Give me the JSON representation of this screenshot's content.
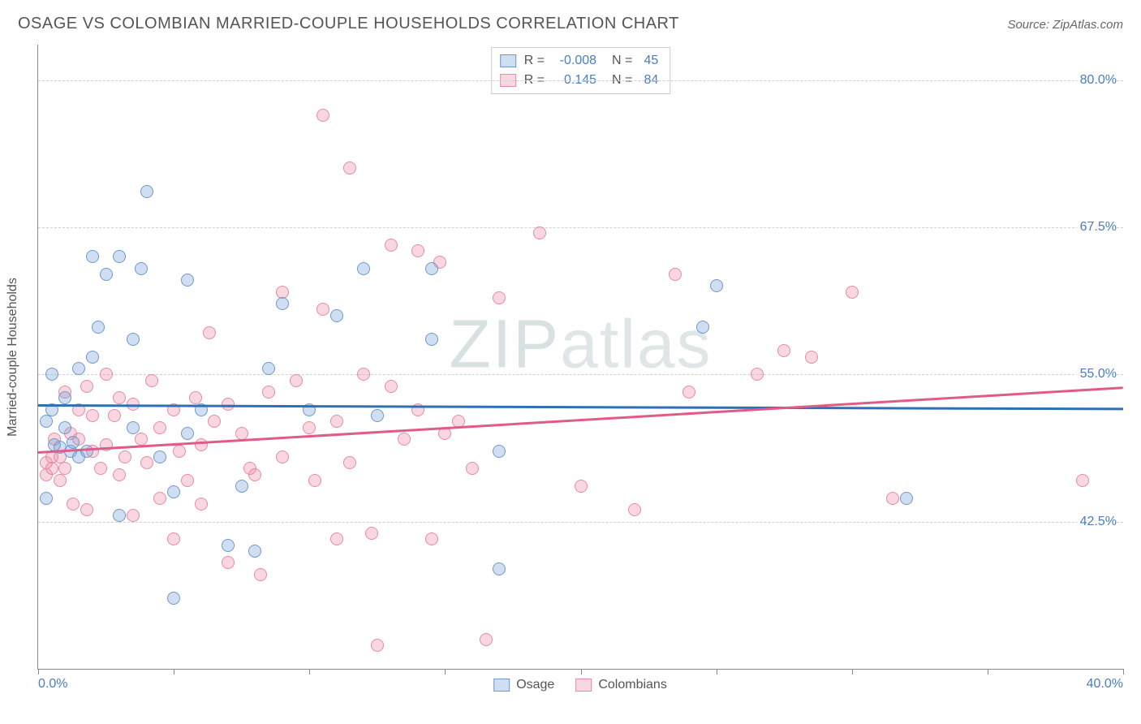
{
  "title": "OSAGE VS COLOMBIAN MARRIED-COUPLE HOUSEHOLDS CORRELATION CHART",
  "source_label": "Source: ZipAtlas.com",
  "watermark": {
    "bold": "ZIP",
    "thin": "atlas"
  },
  "ylabel": "Married-couple Households",
  "chart": {
    "type": "scatter",
    "xlim": [
      0,
      40
    ],
    "ylim": [
      30,
      83
    ],
    "x_axis_labels": [
      {
        "value": 0,
        "label": "0.0%"
      },
      {
        "value": 40,
        "label": "40.0%"
      }
    ],
    "x_ticks": [
      0,
      5,
      10,
      15,
      20,
      25,
      30,
      35,
      40
    ],
    "y_gridlines": [
      {
        "value": 42.5,
        "label": "42.5%"
      },
      {
        "value": 55.0,
        "label": "55.0%"
      },
      {
        "value": 67.5,
        "label": "67.5%"
      },
      {
        "value": 80.0,
        "label": "80.0%"
      }
    ],
    "background_color": "#ffffff",
    "grid_color": "#d0d0d0",
    "axis_color": "#888888",
    "label_color": "#4a7ebb",
    "marker_radius": 8,
    "marker_border_width": 1.5,
    "series": [
      {
        "name": "Osage",
        "fill": "rgba(120,160,216,0.35)",
        "stroke": "#6e98d1",
        "trend": {
          "color": "#2f6fb3",
          "y_start": 52.5,
          "y_end": 52.2
        },
        "stats": {
          "R": "-0.008",
          "N": "45"
        },
        "points": [
          [
            0.3,
            44.5
          ],
          [
            0.3,
            51.0
          ],
          [
            0.5,
            52.0
          ],
          [
            0.5,
            55.0
          ],
          [
            0.6,
            49.0
          ],
          [
            0.8,
            48.8
          ],
          [
            1.0,
            53.0
          ],
          [
            1.0,
            50.5
          ],
          [
            1.2,
            48.5
          ],
          [
            1.3,
            49.2
          ],
          [
            1.5,
            55.5
          ],
          [
            1.5,
            48.0
          ],
          [
            1.8,
            48.5
          ],
          [
            2.0,
            56.5
          ],
          [
            2.0,
            65.0
          ],
          [
            2.2,
            59.0
          ],
          [
            2.5,
            63.5
          ],
          [
            3.0,
            65.0
          ],
          [
            3.0,
            43.0
          ],
          [
            3.5,
            58.0
          ],
          [
            3.5,
            50.5
          ],
          [
            3.8,
            64.0
          ],
          [
            4.0,
            70.5
          ],
          [
            4.5,
            48.0
          ],
          [
            5.0,
            36.0
          ],
          [
            5.0,
            45.0
          ],
          [
            5.5,
            63.0
          ],
          [
            5.5,
            50.0
          ],
          [
            6.0,
            52.0
          ],
          [
            7.0,
            40.5
          ],
          [
            7.5,
            45.5
          ],
          [
            8.0,
            40.0
          ],
          [
            8.5,
            55.5
          ],
          [
            9.0,
            61.0
          ],
          [
            10.0,
            52.0
          ],
          [
            11.0,
            60.0
          ],
          [
            12.0,
            64.0
          ],
          [
            12.5,
            51.5
          ],
          [
            14.5,
            64.0
          ],
          [
            14.5,
            58.0
          ],
          [
            17.0,
            48.5
          ],
          [
            17.0,
            38.5
          ],
          [
            24.5,
            59.0
          ],
          [
            25.0,
            62.5
          ],
          [
            32.0,
            44.5
          ]
        ]
      },
      {
        "name": "Colombians",
        "fill": "rgba(238,140,165,0.35)",
        "stroke": "#e88aa3",
        "trend": {
          "color": "#e05b88",
          "y_start": 48.5,
          "y_end": 54.0
        },
        "stats": {
          "R": "0.145",
          "N": "84"
        },
        "points": [
          [
            0.3,
            47.5
          ],
          [
            0.3,
            46.5
          ],
          [
            0.5,
            48.0
          ],
          [
            0.5,
            47.0
          ],
          [
            0.6,
            49.5
          ],
          [
            0.8,
            48.0
          ],
          [
            0.8,
            46.0
          ],
          [
            1.0,
            47.0
          ],
          [
            1.0,
            53.5
          ],
          [
            1.2,
            50.0
          ],
          [
            1.3,
            44.0
          ],
          [
            1.5,
            49.5
          ],
          [
            1.5,
            52.0
          ],
          [
            1.8,
            54.0
          ],
          [
            1.8,
            43.5
          ],
          [
            2.0,
            48.5
          ],
          [
            2.0,
            51.5
          ],
          [
            2.3,
            47.0
          ],
          [
            2.5,
            55.0
          ],
          [
            2.5,
            49.0
          ],
          [
            2.8,
            51.5
          ],
          [
            3.0,
            53.0
          ],
          [
            3.0,
            46.5
          ],
          [
            3.2,
            48.0
          ],
          [
            3.5,
            52.5
          ],
          [
            3.5,
            43.0
          ],
          [
            3.8,
            49.5
          ],
          [
            4.0,
            47.5
          ],
          [
            4.2,
            54.5
          ],
          [
            4.5,
            50.5
          ],
          [
            4.5,
            44.5
          ],
          [
            5.0,
            41.0
          ],
          [
            5.0,
            52.0
          ],
          [
            5.2,
            48.5
          ],
          [
            5.5,
            46.0
          ],
          [
            5.8,
            53.0
          ],
          [
            6.0,
            49.0
          ],
          [
            6.0,
            44.0
          ],
          [
            6.3,
            58.5
          ],
          [
            6.5,
            51.0
          ],
          [
            7.0,
            52.5
          ],
          [
            7.0,
            39.0
          ],
          [
            7.5,
            50.0
          ],
          [
            7.8,
            47.0
          ],
          [
            8.0,
            46.5
          ],
          [
            8.2,
            38.0
          ],
          [
            8.5,
            53.5
          ],
          [
            9.0,
            48.0
          ],
          [
            9.0,
            62.0
          ],
          [
            9.5,
            54.5
          ],
          [
            10.0,
            50.5
          ],
          [
            10.2,
            46.0
          ],
          [
            10.5,
            60.5
          ],
          [
            10.5,
            77.0
          ],
          [
            11.0,
            51.0
          ],
          [
            11.0,
            41.0
          ],
          [
            11.5,
            72.5
          ],
          [
            11.5,
            47.5
          ],
          [
            12.0,
            55.0
          ],
          [
            12.3,
            41.5
          ],
          [
            12.5,
            32.0
          ],
          [
            13.0,
            54.0
          ],
          [
            13.0,
            66.0
          ],
          [
            13.5,
            49.5
          ],
          [
            14.0,
            65.5
          ],
          [
            14.0,
            52.0
          ],
          [
            14.5,
            41.0
          ],
          [
            14.8,
            64.5
          ],
          [
            15.0,
            50.0
          ],
          [
            15.5,
            51.0
          ],
          [
            16.0,
            47.0
          ],
          [
            16.5,
            32.5
          ],
          [
            17.0,
            61.5
          ],
          [
            18.5,
            67.0
          ],
          [
            20.0,
            45.5
          ],
          [
            22.0,
            43.5
          ],
          [
            23.5,
            63.5
          ],
          [
            24.0,
            53.5
          ],
          [
            26.5,
            55.0
          ],
          [
            27.5,
            57.0
          ],
          [
            28.5,
            56.5
          ],
          [
            30.0,
            62.0
          ],
          [
            31.5,
            44.5
          ],
          [
            38.5,
            46.0
          ]
        ]
      }
    ]
  },
  "legend_bottom": [
    {
      "label": "Osage",
      "fill": "rgba(120,160,216,0.35)",
      "stroke": "#6e98d1"
    },
    {
      "label": "Colombians",
      "fill": "rgba(238,140,165,0.35)",
      "stroke": "#e88aa3"
    }
  ]
}
